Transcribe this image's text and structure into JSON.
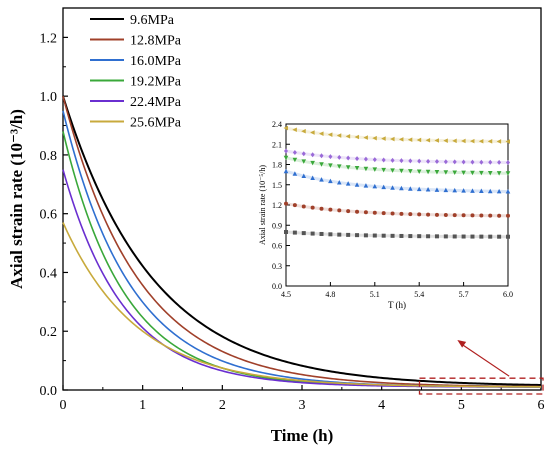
{
  "colors": {
    "background": "#ffffff",
    "axis": "#000000",
    "series_9_6": "#000000",
    "series_12_8": "#a0402a",
    "series_16_0": "#2f6fd0",
    "series_19_2": "#3aa83a",
    "series_22_4": "#6a2fd0",
    "series_25_6": "#c8aa3c",
    "dashed_box": "#b02020",
    "arrow": "#b02020"
  },
  "chart_data": [
    {
      "type": "line",
      "title": "",
      "xlabel": "Time (h)",
      "ylabel": "Axial strain rate (10⁻³/h)",
      "xlim": [
        0,
        6
      ],
      "ylim": [
        0,
        1.3
      ],
      "x_ticks": [
        "0",
        "1",
        "2",
        "3",
        "4",
        "5",
        "6"
      ],
      "y_ticks": [
        "0.0",
        "0.2",
        "0.4",
        "0.6",
        "0.8",
        "1.0",
        "1.2"
      ],
      "grid": false,
      "legend_position": "top-left",
      "series": [
        {
          "name": "9.6MPa",
          "color": "#000000",
          "y0": 1.0,
          "k": 0.88,
          "c": 0.012
        },
        {
          "name": "12.8MPa",
          "color": "#a0402a",
          "y0": 1.0,
          "k": 1.05,
          "c": 0.01
        },
        {
          "name": "16.0MPa",
          "color": "#2f6fd0",
          "y0": 0.95,
          "k": 1.18,
          "c": 0.01
        },
        {
          "name": "19.2MPa",
          "color": "#3aa83a",
          "y0": 0.88,
          "k": 1.3,
          "c": 0.01
        },
        {
          "name": "22.4MPa",
          "color": "#6a2fd0",
          "y0": 0.75,
          "k": 1.3,
          "c": 0.01
        },
        {
          "name": "25.6MPa",
          "color": "#c8aa3c",
          "y0": 0.57,
          "k": 1.08,
          "c": 0.01
        }
      ],
      "highlight_region": {
        "x": [
          4.5,
          6.0
        ],
        "y": [
          0.0,
          0.03
        ]
      }
    },
    {
      "type": "scatter",
      "title": "",
      "xlabel": "T (h)",
      "ylabel": "Axial strain rate (10⁻⁵/h)",
      "xlim": [
        4.5,
        6.0
      ],
      "ylim": [
        0.0,
        2.4
      ],
      "x_ticks": [
        "4.5",
        "4.8",
        "5.1",
        "5.4",
        "5.7",
        "6.0"
      ],
      "y_ticks": [
        "0.0",
        "0.3",
        "0.6",
        "0.9",
        "1.2",
        "1.5",
        "1.8",
        "2.1",
        "2.4"
      ],
      "grid": false,
      "x": [
        4.5,
        4.56,
        4.62,
        4.68,
        4.74,
        4.8,
        4.86,
        4.92,
        4.98,
        5.04,
        5.1,
        5.16,
        5.22,
        5.28,
        5.34,
        5.4,
        5.46,
        5.52,
        5.58,
        5.64,
        5.7,
        5.76,
        5.82,
        5.88,
        5.94,
        6.0
      ],
      "series": [
        {
          "marker": "square",
          "color": "#555555",
          "start": 0.8,
          "end": 0.73
        },
        {
          "marker": "circle",
          "color": "#a0402a",
          "start": 1.22,
          "end": 1.04
        },
        {
          "marker": "triangle-up",
          "color": "#2f6fd0",
          "start": 1.7,
          "end": 1.4
        },
        {
          "marker": "triangle-down",
          "color": "#3aa83a",
          "start": 1.9,
          "end": 1.67
        },
        {
          "marker": "diamond",
          "color": "#9a6ad8",
          "start": 2.0,
          "end": 1.83
        },
        {
          "marker": "triangle-left",
          "color": "#c8aa3c",
          "start": 2.34,
          "end": 2.14
        }
      ]
    }
  ]
}
